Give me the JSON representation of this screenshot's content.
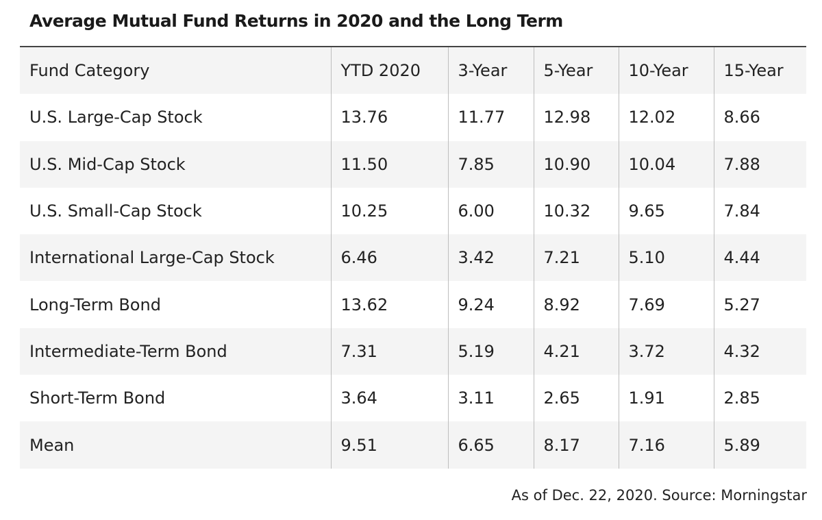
{
  "title": "Average Mutual Fund Returns in 2020 and the Long Term",
  "source": "As of Dec. 22, 2020. Source: Morningstar",
  "chart_data": {
    "type": "table",
    "title": "Average Mutual Fund Returns in 2020 and the Long Term",
    "columns": [
      "Fund Category",
      "YTD 2020",
      "3-Year",
      "5-Year",
      "10-Year",
      "15-Year"
    ],
    "rows": [
      [
        "U.S. Large-Cap Stock",
        "13.76",
        "11.77",
        "12.98",
        "12.02",
        "8.66"
      ],
      [
        "U.S. Mid-Cap Stock",
        "11.50",
        "7.85",
        "10.90",
        "10.04",
        "7.88"
      ],
      [
        "U.S. Small-Cap Stock",
        "10.25",
        "6.00",
        "10.32",
        "9.65",
        "7.84"
      ],
      [
        "International Large-Cap Stock",
        "6.46",
        "3.42",
        "7.21",
        "5.10",
        "4.44"
      ],
      [
        "Long-Term Bond",
        "13.62",
        "9.24",
        "8.92",
        "7.69",
        "5.27"
      ],
      [
        "Intermediate-Term Bond",
        "7.31",
        "5.19",
        "4.21",
        "3.72",
        "4.32"
      ],
      [
        "Short-Term Bond",
        "3.64",
        "3.11",
        "2.65",
        "1.91",
        "2.85"
      ],
      [
        "Mean",
        "9.51",
        "6.65",
        "8.17",
        "7.16",
        "5.89"
      ]
    ],
    "source": "As of Dec. 22, 2020. Source: Morningstar"
  }
}
